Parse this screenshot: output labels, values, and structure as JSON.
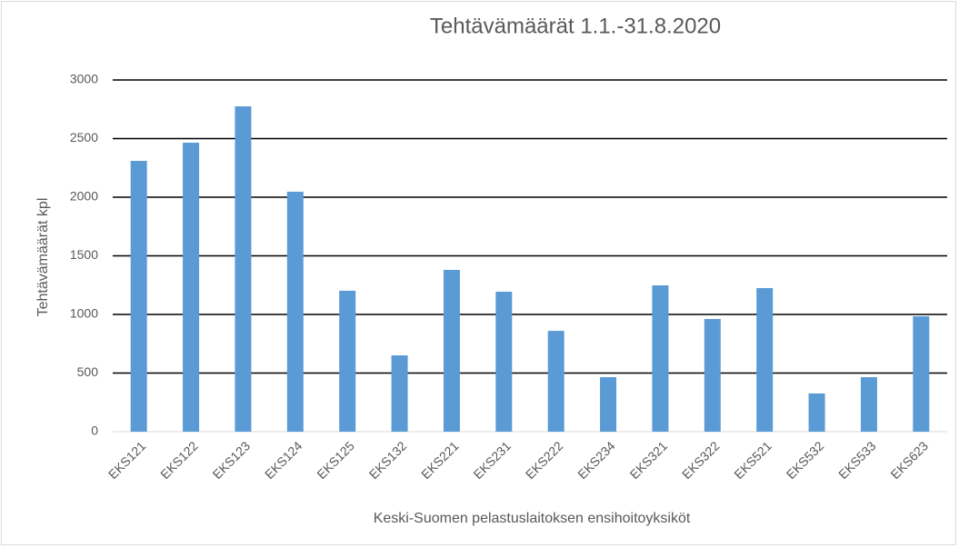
{
  "chart_data": {
    "type": "bar",
    "title": "Tehtävämäärät 1.1.-31.8.2020",
    "x_label": "Keski-Suomen pelastuslaitoksen ensihoitoyksiköt",
    "y_label": "Tehtävämäärät kpl",
    "categories": [
      "EKS121",
      "EKS122",
      "EKS123",
      "EKS124",
      "EKS125",
      "EKS132",
      "EKS221",
      "EKS231",
      "EKS222",
      "EKS234",
      "EKS321",
      "EKS322",
      "EKS521",
      "EKS532",
      "EKS533",
      "EKS623"
    ],
    "values": [
      2310,
      2465,
      2775,
      2047,
      1202,
      651,
      1380,
      1194,
      860,
      465,
      1248,
      961,
      1225,
      326,
      465,
      984
    ],
    "color": "#5b9bd5",
    "ylim": [
      0,
      3000
    ],
    "yticks": [
      0,
      500,
      1000,
      1500,
      2000,
      2500,
      3000
    ],
    "grid": true
  }
}
